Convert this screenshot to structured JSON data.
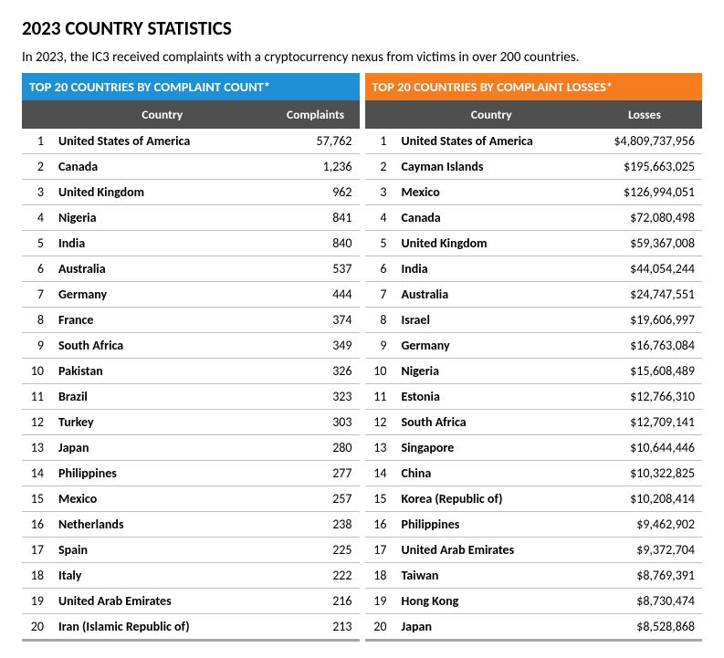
{
  "page": {
    "title": "2023 COUNTRY STATISTICS",
    "intro": "In 2023, the IC3 received complaints with a cryptocurrency nexus from victims in over 200 countries."
  },
  "colors": {
    "header_blue": "#1f8fd6",
    "header_orange": "#f57c1f",
    "subheader_gray": "#4f4f4f",
    "row_border": "#bfbfbf",
    "bottom_border": "#a6a6a6",
    "background": "#ffffff",
    "text": "#000000"
  },
  "typography": {
    "title_fontsize_pt": 16,
    "title_weight": 700,
    "intro_fontsize_pt": 11,
    "table_header_fontsize_pt": 11,
    "table_body_fontsize_pt": 10.5,
    "country_weight": 700
  },
  "left_table": {
    "type": "table",
    "banner_label": "TOP 20 COUNTRIES BY COMPLAINT COUNT*",
    "banner_color": "#1f8fd6",
    "columns": [
      "",
      "Country",
      "Complaints"
    ],
    "column_align": [
      "right",
      "left",
      "right"
    ],
    "rows": [
      {
        "rank": "1",
        "country": "United States of America",
        "value": "57,762"
      },
      {
        "rank": "2",
        "country": "Canada",
        "value": "1,236"
      },
      {
        "rank": "3",
        "country": "United Kingdom",
        "value": "962"
      },
      {
        "rank": "4",
        "country": "Nigeria",
        "value": "841"
      },
      {
        "rank": "5",
        "country": "India",
        "value": "840"
      },
      {
        "rank": "6",
        "country": "Australia",
        "value": "537"
      },
      {
        "rank": "7",
        "country": "Germany",
        "value": "444"
      },
      {
        "rank": "8",
        "country": "France",
        "value": "374"
      },
      {
        "rank": "9",
        "country": "South Africa",
        "value": "349"
      },
      {
        "rank": "10",
        "country": "Pakistan",
        "value": "326"
      },
      {
        "rank": "11",
        "country": "Brazil",
        "value": "323"
      },
      {
        "rank": "12",
        "country": "Turkey",
        "value": "303"
      },
      {
        "rank": "13",
        "country": "Japan",
        "value": "280"
      },
      {
        "rank": "14",
        "country": "Philippines",
        "value": "277"
      },
      {
        "rank": "15",
        "country": "Mexico",
        "value": "257"
      },
      {
        "rank": "16",
        "country": "Netherlands",
        "value": "238"
      },
      {
        "rank": "17",
        "country": "Spain",
        "value": "225"
      },
      {
        "rank": "18",
        "country": "Italy",
        "value": "222"
      },
      {
        "rank": "19",
        "country": "United Arab Emirates",
        "value": "216"
      },
      {
        "rank": "20",
        "country": "Iran (Islamic Republic of)",
        "value": "213"
      }
    ]
  },
  "right_table": {
    "type": "table",
    "banner_label": "TOP 20 COUNTRIES BY COMPLAINT LOSSES*",
    "banner_color": "#f57c1f",
    "columns": [
      "",
      "Country",
      "Losses"
    ],
    "column_align": [
      "right",
      "left",
      "right"
    ],
    "rows": [
      {
        "rank": "1",
        "country": "United States of America",
        "value": "$4,809,737,956"
      },
      {
        "rank": "2",
        "country": "Cayman Islands",
        "value": "$195,663,025"
      },
      {
        "rank": "3",
        "country": "Mexico",
        "value": "$126,994,051"
      },
      {
        "rank": "4",
        "country": "Canada",
        "value": "$72,080,498"
      },
      {
        "rank": "5",
        "country": "United Kingdom",
        "value": "$59,367,008"
      },
      {
        "rank": "6",
        "country": "India",
        "value": "$44,054,244"
      },
      {
        "rank": "7",
        "country": "Australia",
        "value": "$24,747,551"
      },
      {
        "rank": "8",
        "country": "Israel",
        "value": "$19,606,997"
      },
      {
        "rank": "9",
        "country": "Germany",
        "value": "$16,763,084"
      },
      {
        "rank": "10",
        "country": "Nigeria",
        "value": "$15,608,489"
      },
      {
        "rank": "11",
        "country": "Estonia",
        "value": "$12,766,310"
      },
      {
        "rank": "12",
        "country": "South Africa",
        "value": "$12,709,141"
      },
      {
        "rank": "13",
        "country": "Singapore",
        "value": "$10,644,446"
      },
      {
        "rank": "14",
        "country": "China",
        "value": "$10,322,825"
      },
      {
        "rank": "15",
        "country": "Korea (Republic of)",
        "value": "$10,208,414"
      },
      {
        "rank": "16",
        "country": "Philippines",
        "value": "$9,462,902"
      },
      {
        "rank": "17",
        "country": "United Arab Emirates",
        "value": "$9,372,704"
      },
      {
        "rank": "18",
        "country": "Taiwan",
        "value": "$8,769,391"
      },
      {
        "rank": "19",
        "country": "Hong Kong",
        "value": "$8,730,474"
      },
      {
        "rank": "20",
        "country": "Japan",
        "value": "$8,528,868"
      }
    ]
  }
}
